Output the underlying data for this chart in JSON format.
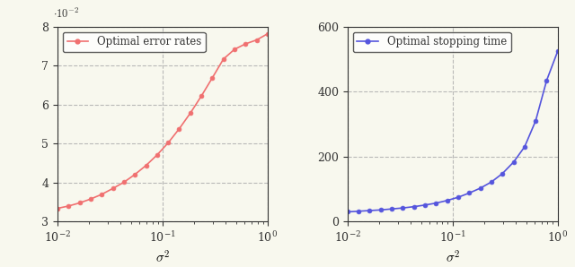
{
  "sigma2_values": [
    0.01,
    0.01274,
    0.01623,
    0.02069,
    0.02637,
    0.03359,
    0.04281,
    0.05455,
    0.06952,
    0.08858,
    0.1129,
    0.1438,
    0.1833,
    0.2336,
    0.2976,
    0.3793,
    0.4833,
    0.6158,
    0.7848,
    1.0
  ],
  "error_rates": [
    0.0334,
    0.034,
    0.0348,
    0.0358,
    0.037,
    0.0385,
    0.0401,
    0.0421,
    0.0444,
    0.0471,
    0.0502,
    0.0538,
    0.0578,
    0.0622,
    0.0669,
    0.0717,
    0.0742,
    0.0756,
    0.0766,
    0.0782
  ],
  "stopping_time": [
    30,
    32,
    34,
    36,
    39,
    42,
    46,
    51,
    57,
    65,
    75,
    88,
    103,
    122,
    148,
    183,
    230,
    310,
    435,
    525
  ],
  "error_color": "#F07070",
  "stopping_color": "#5555DD",
  "marker": "o",
  "markersize": 3.5,
  "linewidth": 1.2,
  "xlabel": "$\\sigma^2$",
  "legend1": "Optimal error rates",
  "legend2": "Optimal stopping time",
  "ylim1": [
    0.03,
    0.08
  ],
  "ylim2": [
    0,
    600
  ],
  "yticks1": [
    0.03,
    0.04,
    0.05,
    0.06,
    0.07,
    0.08
  ],
  "ytick1_labels": [
    "3",
    "4",
    "5",
    "6",
    "7",
    "8"
  ],
  "yticks2": [
    0,
    200,
    400,
    600
  ],
  "grid_color": "#aaaaaa",
  "grid_style": "--",
  "grid_alpha": 0.8,
  "bg_color": "#F8F8EE"
}
